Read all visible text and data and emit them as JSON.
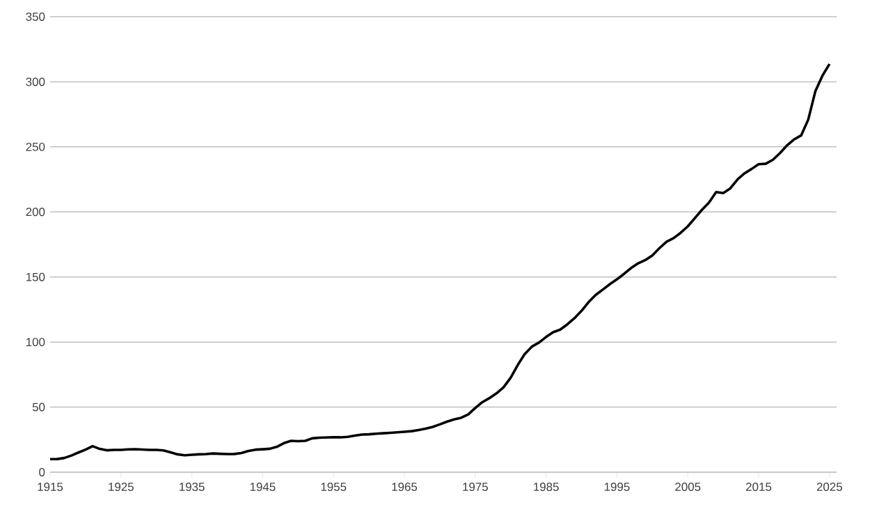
{
  "chart_data": {
    "type": "line",
    "color": "#000000",
    "grid": "y",
    "x": [
      1915,
      1916,
      1917,
      1918,
      1919,
      1920,
      1921,
      1922,
      1923,
      1924,
      1925,
      1926,
      1927,
      1928,
      1929,
      1930,
      1931,
      1932,
      1933,
      1934,
      1935,
      1936,
      1937,
      1938,
      1939,
      1940,
      1941,
      1942,
      1943,
      1944,
      1945,
      1946,
      1947,
      1948,
      1949,
      1950,
      1951,
      1952,
      1953,
      1954,
      1955,
      1956,
      1957,
      1958,
      1959,
      1960,
      1961,
      1962,
      1963,
      1964,
      1965,
      1966,
      1967,
      1968,
      1969,
      1970,
      1971,
      1972,
      1973,
      1974,
      1975,
      1976,
      1977,
      1978,
      1979,
      1980,
      1981,
      1982,
      1983,
      1984,
      1985,
      1986,
      1987,
      1988,
      1989,
      1990,
      1991,
      1992,
      1993,
      1994,
      1995,
      1996,
      1997,
      1998,
      1999,
      2000,
      2001,
      2002,
      2003,
      2004,
      2005,
      2006,
      2007,
      2008,
      2009,
      2010,
      2011,
      2012,
      2013,
      2014,
      2015,
      2016,
      2017,
      2018,
      2019,
      2020,
      2021,
      2022,
      2023,
      2024,
      2025
    ],
    "values": [
      10.0,
      10.1,
      10.9,
      12.8,
      15.1,
      17.3,
      20.0,
      17.9,
      16.8,
      17.1,
      17.1,
      17.5,
      17.7,
      17.4,
      17.1,
      17.1,
      16.7,
      15.2,
      13.7,
      13.0,
      13.4,
      13.7,
      13.9,
      14.4,
      14.1,
      13.9,
      14.0,
      14.7,
      16.3,
      17.3,
      17.6,
      18.0,
      19.5,
      22.3,
      24.1,
      23.8,
      24.1,
      26.0,
      26.5,
      26.7,
      26.9,
      26.8,
      27.2,
      28.1,
      28.9,
      29.1,
      29.6,
      29.9,
      30.2,
      30.6,
      31.0,
      31.5,
      32.4,
      33.4,
      34.8,
      36.7,
      38.8,
      40.5,
      41.8,
      44.4,
      49.3,
      53.8,
      56.9,
      60.6,
      65.2,
      72.6,
      82.4,
      90.9,
      96.5,
      99.6,
      103.9,
      107.6,
      109.6,
      113.6,
      118.3,
      124.0,
      130.7,
      136.2,
      140.3,
      144.5,
      148.2,
      152.4,
      156.9,
      160.5,
      163.0,
      166.6,
      172.2,
      177.1,
      179.9,
      184.0,
      188.9,
      195.3,
      201.6,
      207.3,
      215.3,
      214.5,
      218.1,
      224.9,
      229.6,
      233.0,
      236.7,
      237.0,
      240.0,
      245.1,
      251.1,
      255.7,
      258.8,
      271.0,
      292.7,
      304.7,
      313.7
    ],
    "xlim": [
      1915,
      2026
    ],
    "xticks": [
      1915,
      1925,
      1935,
      1945,
      1955,
      1965,
      1975,
      1985,
      1995,
      2005,
      2015,
      2025
    ],
    "ylim": [
      0,
      350
    ],
    "yticks": [
      0,
      50,
      100,
      150,
      200,
      250,
      300,
      350
    ]
  }
}
